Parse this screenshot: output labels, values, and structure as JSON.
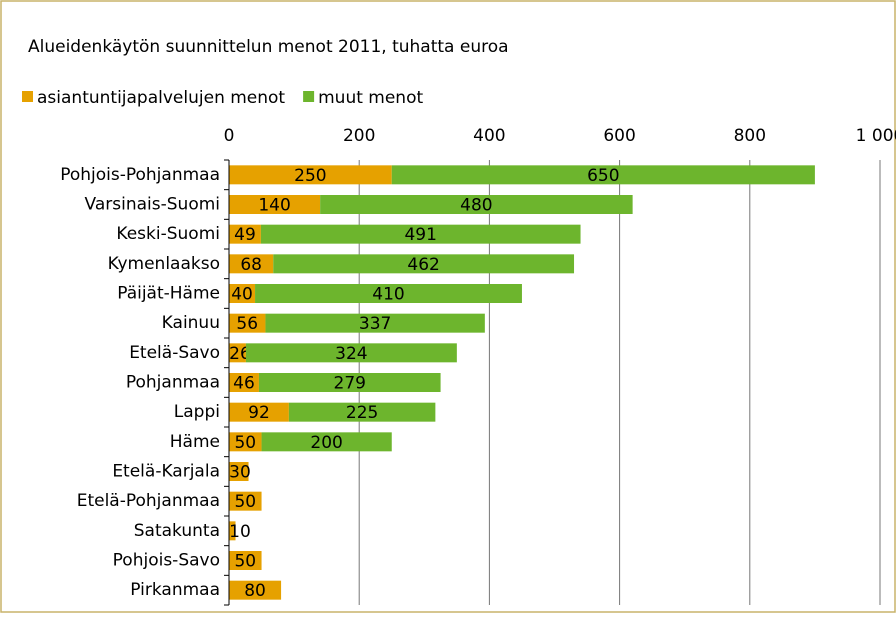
{
  "chart_data": {
    "type": "stacked-barh",
    "title": "Alueidenkäytön suunnittelun menot 2011, tuhatta euroa",
    "categories": [
      "Pohjois-Pohjanmaa",
      "Varsinais-Suomi",
      "Keski-Suomi",
      "Kymenlaakso",
      "Päijät-Häme",
      "Kainuu",
      "Etelä-Savo",
      "Pohjanmaa",
      "Lappi",
      "Häme",
      "Etelä-Karjala",
      "Etelä-Pohjanmaa",
      "Satakunta",
      "Pohjois-Savo",
      "Pirkanmaa"
    ],
    "series": [
      {
        "name": "asiantuntijapalvelujen menot",
        "color": "#e6a100",
        "values": [
          250,
          140,
          49,
          68,
          40,
          56,
          26,
          46,
          92,
          50,
          30,
          50,
          10,
          50,
          80
        ]
      },
      {
        "name": "muut menot",
        "color": "#6db52d",
        "values": [
          650,
          480,
          491,
          462,
          410,
          337,
          324,
          279,
          225,
          200,
          null,
          null,
          null,
          null,
          null
        ]
      }
    ],
    "xlim": [
      0,
      1000
    ],
    "xticks": [
      0,
      200,
      400,
      600,
      800,
      {
        "value": 1000,
        "label": "1 000"
      }
    ],
    "grid": true,
    "legend": "top"
  }
}
